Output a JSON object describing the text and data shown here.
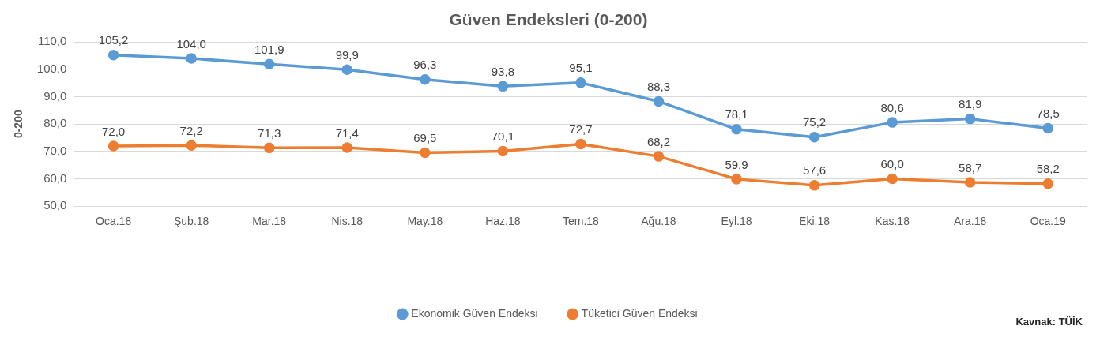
{
  "chart_data": {
    "type": "line",
    "title": "Güven Endeksleri (0-200)",
    "ylabel": "0-200",
    "categories": [
      "Oca.18",
      "Şub.18",
      "Mar.18",
      "Nis.18",
      "May.18",
      "Haz.18",
      "Tem.18",
      "Ağu.18",
      "Eyl.18",
      "Eki.18",
      "Kas.18",
      "Ara.18",
      "Oca.19"
    ],
    "series": [
      {
        "name": "Ekonomik Güven Endeksi",
        "color": "#5b9bd5",
        "values": [
          105.2,
          104.0,
          101.9,
          99.9,
          96.3,
          93.8,
          95.1,
          88.3,
          78.1,
          75.2,
          80.6,
          81.9,
          78.5
        ],
        "value_labels": [
          "105,2",
          "104,0",
          "101,9",
          "99,9",
          "96,3",
          "93,8",
          "95,1",
          "88,3",
          "78,1",
          "75,2",
          "80,6",
          "81,9",
          "78,5"
        ]
      },
      {
        "name": "Tüketici Güven Endeksi",
        "color": "#ed7d31",
        "values": [
          72.0,
          72.2,
          71.3,
          71.4,
          69.5,
          70.1,
          72.7,
          68.2,
          59.9,
          57.6,
          60.0,
          58.7,
          58.2
        ],
        "value_labels": [
          "72,0",
          "72,2",
          "71,3",
          "71,4",
          "69,5",
          "70,1",
          "72,7",
          "68,2",
          "59,9",
          "57,6",
          "60,0",
          "58,7",
          "58,2"
        ]
      }
    ],
    "ylim": [
      50,
      110
    ],
    "yticks": [
      {
        "value": 50,
        "label": "50,0"
      },
      {
        "value": 60,
        "label": "60,0"
      },
      {
        "value": 70,
        "label": "70,0"
      },
      {
        "value": 80,
        "label": "80,0"
      },
      {
        "value": 90,
        "label": "90,0"
      },
      {
        "value": 100,
        "label": "100,0"
      },
      {
        "value": 110,
        "label": "110,0"
      }
    ],
    "grid": "y",
    "legend": "bottom",
    "marker": "circle",
    "line_style": "solid",
    "annotations": [
      "Kavnak: TÜİK"
    ]
  }
}
